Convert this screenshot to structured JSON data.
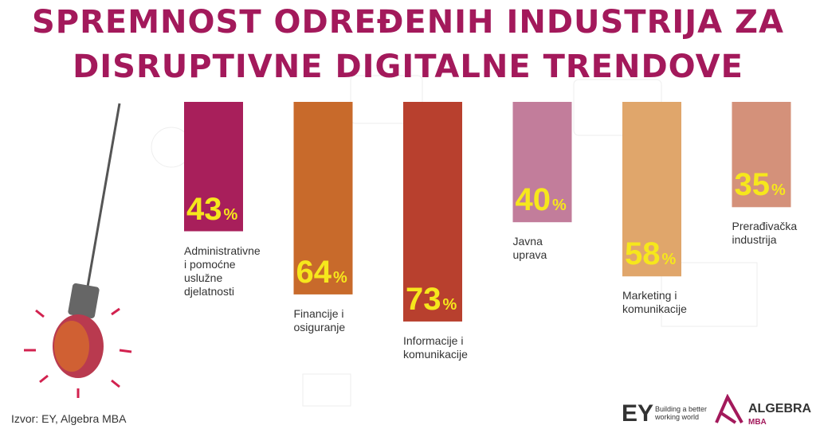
{
  "chart_data": {
    "type": "bar",
    "title": "SPREMNOST ODREĐENIH INDUSTRIJA ZA\nDISRUPTIVNE DIGITALNE TRENDOVE",
    "categories": [
      "Administrativne\ni pomoćne\nuslužne\ndjelatnosti",
      "Financije i\nosiguranje",
      "Informacije i\nkomunikacije",
      "Javna\nuprava",
      "Marketing i\nkomunikacije",
      "Prerađivačka\nindustrija"
    ],
    "values": [
      43,
      64,
      73,
      40,
      58,
      35
    ],
    "value_suffix": "%",
    "colors": [
      "#a81f5b",
      "#c86a2b",
      "#b8402e",
      "#c27d9b",
      "#e0a66b",
      "#d4917a"
    ],
    "source": "Izvor: EY, Algebra MBA",
    "logos": {
      "ey": "EY",
      "ey_tagline": "Building a better\nworking world",
      "algebra": "ALGEBRA",
      "algebra_sub": "MBA"
    }
  }
}
